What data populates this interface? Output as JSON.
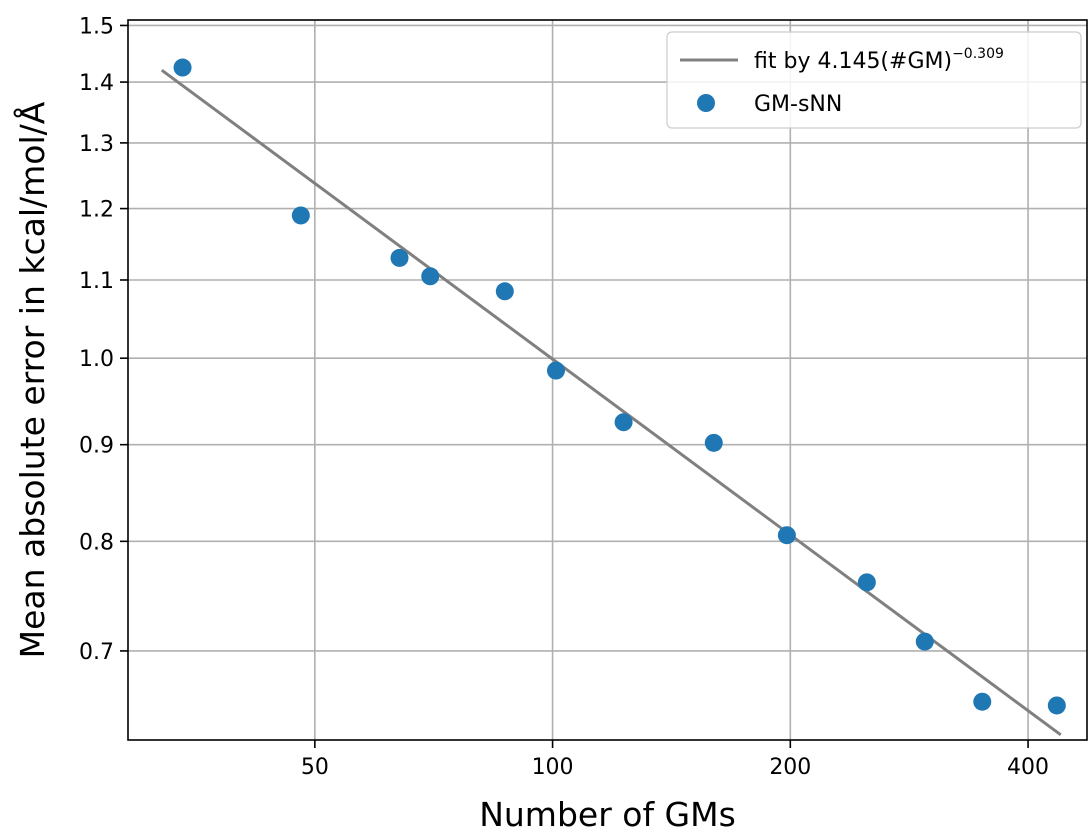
{
  "chart_data": {
    "type": "scatter",
    "xscale": "log",
    "yscale": "log",
    "xlim": [
      29,
      475
    ],
    "ylim": [
      0.628,
      1.51
    ],
    "xticks": [
      {
        "value": 50,
        "label": "50"
      },
      {
        "value": 100,
        "label": "100"
      },
      {
        "value": 200,
        "label": "200"
      },
      {
        "value": 400,
        "label": "400"
      }
    ],
    "yticks": [
      {
        "value": 0.7,
        "label": "0.7"
      },
      {
        "value": 0.8,
        "label": "0.8"
      },
      {
        "value": 0.9,
        "label": "0.9"
      },
      {
        "value": 1.0,
        "label": "1.0"
      },
      {
        "value": 1.1,
        "label": "1.1"
      },
      {
        "value": 1.2,
        "label": "1.2"
      },
      {
        "value": 1.3,
        "label": "1.3"
      },
      {
        "value": 1.4,
        "label": "1.4"
      },
      {
        "value": 1.5,
        "label": "1.5"
      }
    ],
    "grid": true,
    "xlabel": "Number of GMs",
    "ylabel": "Mean absolute error in kcal/mol/Å",
    "legend_position": "top-right",
    "fit": {
      "name": "fit by 4.145(#GM)",
      "exponent_label": "−0.309",
      "coefficient": 4.145,
      "exponent": -0.309,
      "x_range": [
        32,
        440
      ],
      "color": "#808080"
    },
    "series": [
      {
        "name": "GM-sNN",
        "color": "#1f77b4",
        "x": [
          34,
          48,
          64,
          70,
          87,
          101,
          123,
          160,
          198,
          250,
          296,
          350,
          435
        ],
        "y": [
          1.425,
          1.19,
          1.13,
          1.105,
          1.085,
          0.985,
          0.925,
          0.902,
          0.806,
          0.761,
          0.708,
          0.658,
          0.655
        ]
      }
    ]
  }
}
